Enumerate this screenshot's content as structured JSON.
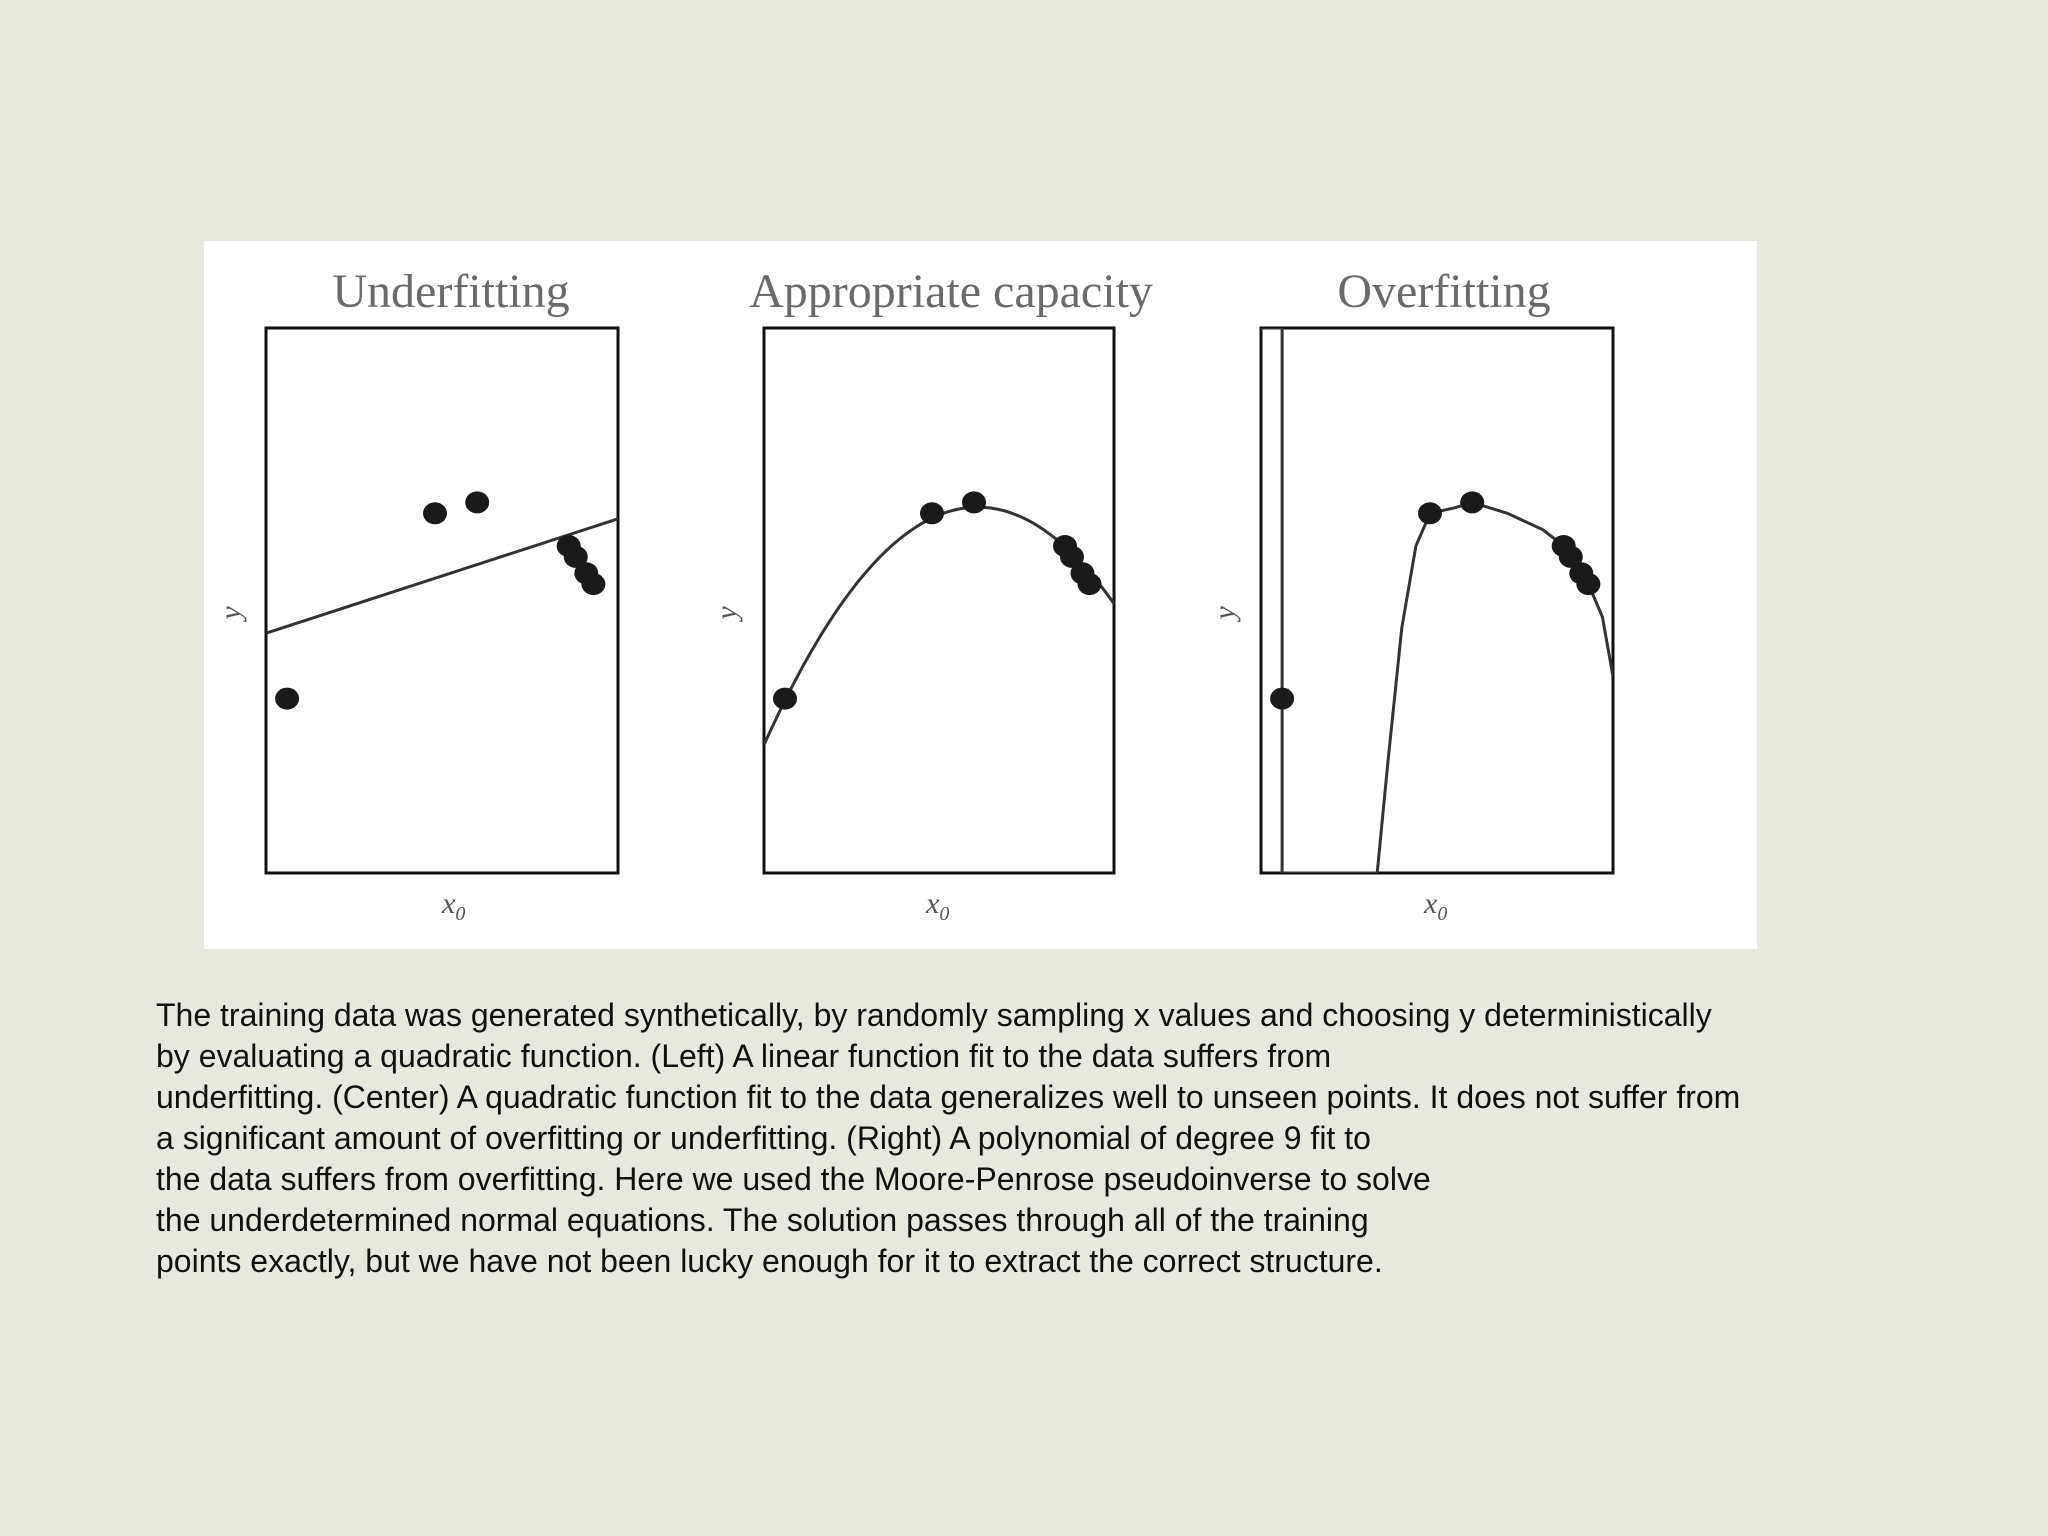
{
  "figure": {
    "panels": [
      {
        "id": "left",
        "title": "Underfitting",
        "xlabel": "x",
        "xlabel_sub": "0",
        "ylabel": "y"
      },
      {
        "id": "center",
        "title": "Appropriate capacity",
        "xlabel": "x",
        "xlabel_sub": "0",
        "ylabel": "y"
      },
      {
        "id": "right",
        "title": "Overfitting",
        "xlabel": "x",
        "xlabel_sub": "0",
        "ylabel": "y"
      }
    ]
  },
  "chart_data": [
    {
      "type": "scatter",
      "title": "Underfitting",
      "xlabel": "x0",
      "ylabel": "y",
      "points": [
        {
          "x": 0.06,
          "y": 0.32
        },
        {
          "x": 0.48,
          "y": 0.66
        },
        {
          "x": 0.6,
          "y": 0.68
        },
        {
          "x": 0.86,
          "y": 0.6
        },
        {
          "x": 0.88,
          "y": 0.58
        },
        {
          "x": 0.91,
          "y": 0.55
        },
        {
          "x": 0.93,
          "y": 0.53
        }
      ],
      "fit": {
        "kind": "linear",
        "x": [
          0.0,
          1.0
        ],
        "y": [
          0.44,
          0.65
        ]
      },
      "xlim": [
        0,
        1
      ],
      "ylim": [
        0,
        1
      ]
    },
    {
      "type": "scatter",
      "title": "Appropriate capacity",
      "xlabel": "x0",
      "ylabel": "y",
      "points": [
        {
          "x": 0.06,
          "y": 0.32
        },
        {
          "x": 0.48,
          "y": 0.66
        },
        {
          "x": 0.6,
          "y": 0.68
        },
        {
          "x": 0.86,
          "y": 0.6
        },
        {
          "x": 0.88,
          "y": 0.58
        },
        {
          "x": 0.91,
          "y": 0.55
        },
        {
          "x": 0.93,
          "y": 0.53
        }
      ],
      "fit": {
        "kind": "quadratic",
        "x": [
          0.0,
          0.1,
          0.2,
          0.3,
          0.4,
          0.5,
          0.6,
          0.7,
          0.8,
          0.9,
          1.0
        ],
        "y": [
          0.25,
          0.36,
          0.46,
          0.55,
          0.62,
          0.66,
          0.68,
          0.67,
          0.63,
          0.57,
          0.49
        ]
      },
      "xlim": [
        0,
        1
      ],
      "ylim": [
        0,
        1
      ]
    },
    {
      "type": "scatter",
      "title": "Overfitting",
      "xlabel": "x0",
      "ylabel": "y",
      "points": [
        {
          "x": 0.06,
          "y": 0.32
        },
        {
          "x": 0.48,
          "y": 0.66
        },
        {
          "x": 0.6,
          "y": 0.68
        },
        {
          "x": 0.86,
          "y": 0.6
        },
        {
          "x": 0.88,
          "y": 0.58
        },
        {
          "x": 0.91,
          "y": 0.55
        },
        {
          "x": 0.93,
          "y": 0.53
        }
      ],
      "fit": {
        "kind": "polynomial degree 9",
        "x": [
          0.0,
          0.06,
          0.06,
          0.33,
          0.36,
          0.4,
          0.44,
          0.48,
          0.55,
          0.6,
          0.7,
          0.8,
          0.86,
          0.9,
          0.93,
          0.97,
          1.0
        ],
        "y": [
          1.0,
          1.0,
          0.0,
          0.0,
          0.2,
          0.45,
          0.6,
          0.66,
          0.67,
          0.68,
          0.66,
          0.63,
          0.6,
          0.57,
          0.53,
          0.47,
          0.36
        ]
      },
      "xlim": [
        0,
        1
      ],
      "ylim": [
        0,
        1
      ]
    }
  ],
  "caption": {
    "lines": [
      "The training data was generated synthetically, by randomly sampling x values and choosing y deterministically",
      "by evaluating a quadratic function. (Left) A linear function fit to the data suffers from",
      "underfitting. (Center) A quadratic function fit to the data generalizes well to unseen points. It does not suffer from",
      "a significant amount of overfitting or underfitting. (Right) A polynomial of degree 9 fit to",
      "the data suffers from overfitting. Here we used the Moore-Penrose pseudoinverse to solve",
      "the underdetermined normal equations. The solution passes through all of the training",
      "points exactly, but we have not been lucky enough for it to extract the correct structure."
    ]
  }
}
